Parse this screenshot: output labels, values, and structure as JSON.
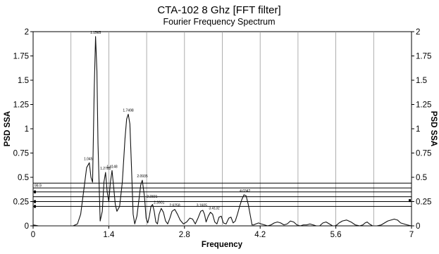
{
  "chart_data": {
    "type": "line",
    "title": "CTA-102 8 Ghz [FFT filter]",
    "subtitle": "Fourier Frequency Spectrum",
    "xlabel": "Frequency",
    "ylabel": "PSD SSA",
    "ylabel_right": "PSD SSA",
    "xlim": [
      0,
      7
    ],
    "ylim": [
      0,
      2
    ],
    "x_ticks": [
      "0",
      "1.4",
      "2.8",
      "4.2",
      "5.6",
      "7"
    ],
    "x_tick_values": [
      0,
      1.4,
      2.8,
      4.2,
      5.6,
      7
    ],
    "x_grid_values": [
      0,
      0.7,
      1.4,
      2.1,
      2.8,
      3.5,
      4.2,
      4.9,
      5.6,
      6.3,
      7
    ],
    "y_ticks": [
      "0",
      "0.25",
      "0.5",
      "0.75",
      "1",
      "1.25",
      "1.5",
      "1.75",
      "2"
    ],
    "y_tick_values": [
      0,
      0.25,
      0.5,
      0.75,
      1,
      1.25,
      1.5,
      1.75,
      2
    ],
    "grid": "vertical only",
    "horizontal_levels": [
      0.2,
      0.25,
      0.3,
      0.35,
      0.39,
      0.44
    ],
    "level_labels": [
      "99.9"
    ],
    "series": [
      {
        "x": [
          0,
          0.05,
          0.1,
          0.18,
          0.26,
          0.34,
          0.42,
          0.5,
          0.58,
          0.66,
          0.74,
          0.82,
          0.88,
          0.94,
          0.99,
          1.04,
          1.07,
          1.1,
          1.13,
          1.155,
          1.18,
          1.2,
          1.24,
          1.28,
          1.31,
          1.34,
          1.37,
          1.4,
          1.43,
          1.46,
          1.49,
          1.52,
          1.55,
          1.6,
          1.65,
          1.7,
          1.73,
          1.76,
          1.79,
          1.82,
          1.85,
          1.88,
          1.92,
          1.96,
          1.99,
          2.02,
          2.06,
          2.09,
          2.12,
          2.15,
          2.18,
          2.21,
          2.24,
          2.27,
          2.3,
          2.33,
          2.37,
          2.41,
          2.45,
          2.49,
          2.53,
          2.57,
          2.62,
          2.67,
          2.72,
          2.78,
          2.84,
          2.9,
          2.95,
          3.0,
          3.05,
          3.1,
          3.14,
          3.17,
          3.2,
          3.24,
          3.28,
          3.32,
          3.36,
          3.4,
          3.44,
          3.48,
          3.52,
          3.57,
          3.62,
          3.66,
          3.7,
          3.74,
          3.78,
          3.82,
          3.86,
          3.9,
          3.94,
          3.98,
          4.02,
          4.05,
          4.08,
          4.12,
          4.17,
          4.22,
          4.28,
          4.34,
          4.4,
          4.46,
          4.52,
          4.58,
          4.64,
          4.7,
          4.76,
          4.82,
          4.88,
          4.94,
          5.0,
          5.06,
          5.12,
          5.18,
          5.24,
          5.3,
          5.36,
          5.42,
          5.48,
          5.54,
          5.58,
          5.62,
          5.66,
          5.72,
          5.8,
          5.88,
          5.96,
          6.04,
          6.1,
          6.14,
          6.18,
          6.22,
          6.28,
          6.36,
          6.44,
          6.5,
          6.56,
          6.62,
          6.68,
          6.74,
          6.8,
          6.86,
          6.92,
          7.0
        ],
        "values": [
          0.01,
          0.005,
          0.0,
          0.0,
          0.0,
          0.0,
          0.0,
          0.0,
          0.0,
          0.0,
          0.0,
          0.02,
          0.12,
          0.38,
          0.6,
          0.65,
          0.5,
          0.45,
          1.4,
          1.95,
          1.6,
          0.85,
          0.05,
          0.15,
          0.45,
          0.55,
          0.35,
          0.25,
          0.45,
          0.57,
          0.4,
          0.22,
          0.15,
          0.2,
          0.45,
          0.9,
          1.1,
          1.15,
          1.05,
          0.6,
          0.12,
          0.02,
          0.1,
          0.28,
          0.42,
          0.47,
          0.3,
          0.08,
          0.03,
          0.1,
          0.2,
          0.22,
          0.15,
          0.04,
          0.02,
          0.12,
          0.18,
          0.14,
          0.05,
          0.02,
          0.08,
          0.15,
          0.17,
          0.12,
          0.06,
          0.02,
          0.04,
          0.08,
          0.07,
          0.02,
          0.08,
          0.15,
          0.16,
          0.12,
          0.04,
          0.1,
          0.14,
          0.12,
          0.04,
          0.02,
          0.09,
          0.1,
          0.03,
          0.02,
          0.08,
          0.09,
          0.03,
          0.05,
          0.12,
          0.2,
          0.27,
          0.32,
          0.31,
          0.22,
          0.1,
          0.01,
          0.01,
          0.02,
          0.03,
          0.02,
          0.01,
          0.0,
          0.01,
          0.03,
          0.04,
          0.03,
          0.01,
          0.02,
          0.05,
          0.04,
          0.01,
          0.0,
          0.01,
          0.01,
          0.02,
          0.01,
          0.0,
          0.0,
          0.03,
          0.04,
          0.02,
          0.0,
          0.0,
          0.01,
          0.03,
          0.05,
          0.06,
          0.04,
          0.01,
          0.0,
          0.01,
          0.03,
          0.04,
          0.02,
          0.0,
          0.0,
          0.01,
          0.03,
          0.05,
          0.06,
          0.07,
          0.06,
          0.03,
          0.02,
          0.01,
          0.0
        ]
      }
    ],
    "peak_labels": [
      {
        "text": "1.1565",
        "x": 1.155,
        "y": 1.95
      },
      {
        "text": "1.7498",
        "x": 1.76,
        "y": 1.15
      },
      {
        "text": "1.045",
        "x": 1.02,
        "y": 0.65
      },
      {
        "text": "1.2785",
        "x": 1.34,
        "y": 0.55
      },
      {
        "text": "1.4148",
        "x": 1.46,
        "y": 0.57
      },
      {
        "text": "2.0935",
        "x": 2.02,
        "y": 0.47
      },
      {
        "text": "2.2321",
        "x": 2.2,
        "y": 0.26
      },
      {
        "text": "2.3901",
        "x": 2.33,
        "y": 0.2
      },
      {
        "text": "2.6258",
        "x": 2.62,
        "y": 0.17
      },
      {
        "text": "3.1605",
        "x": 3.12,
        "y": 0.17
      },
      {
        "text": "3.4132",
        "x": 3.35,
        "y": 0.14
      },
      {
        "text": "4.0342",
        "x": 3.92,
        "y": 0.32
      }
    ]
  }
}
